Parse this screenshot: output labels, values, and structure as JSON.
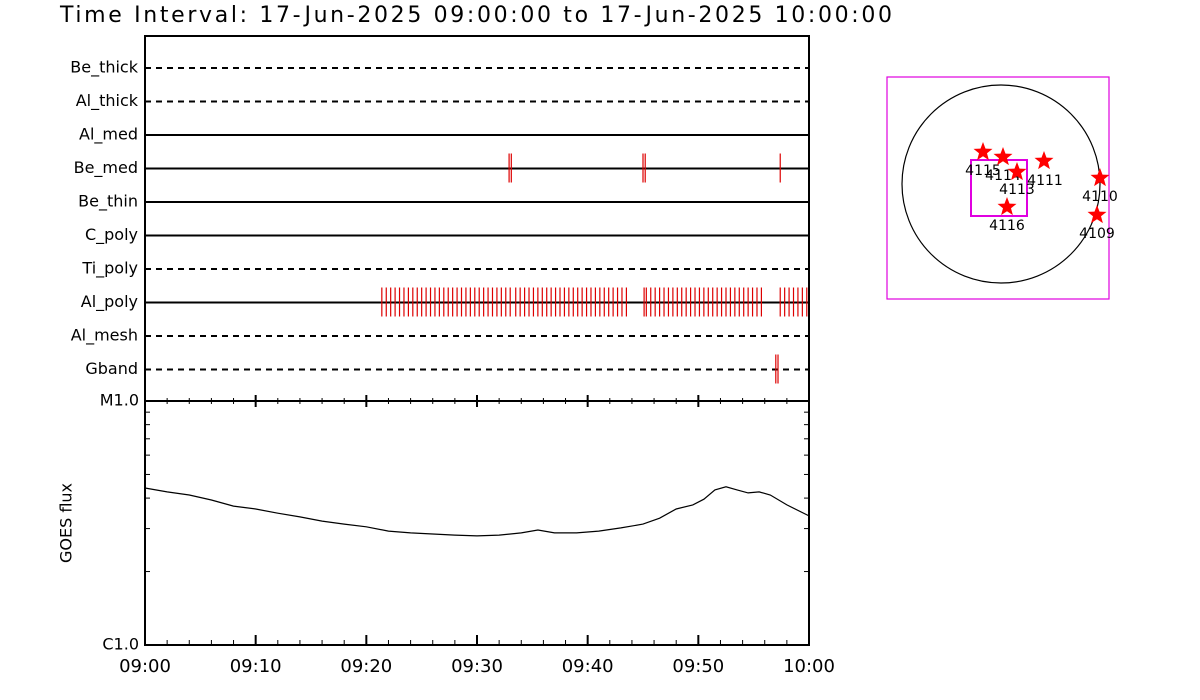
{
  "title": "Time Interval: 17-Jun-2025 09:00:00 to 17-Jun-2025 10:00:00",
  "chart_data": [
    {
      "type": "event",
      "color": "#dd0000",
      "xlim": [
        0,
        60
      ],
      "series": [
        {
          "name": "Be_thick",
          "dashed": true,
          "values": []
        },
        {
          "name": "Al_thick",
          "dashed": true,
          "values": []
        },
        {
          "name": "Al_med",
          "dashed": false,
          "values": []
        },
        {
          "name": "Be_med",
          "dashed": false,
          "values": [
            32.9,
            33.1,
            45.0,
            45.2,
            57.4
          ]
        },
        {
          "name": "Be_thin",
          "dashed": false,
          "values": []
        },
        {
          "name": "C_poly",
          "dashed": false,
          "values": []
        },
        {
          "name": "Ti_poly",
          "dashed": true,
          "values": []
        },
        {
          "name": "Al_poly",
          "dashed": false,
          "values": [
            21.4,
            21.8,
            22.2,
            22.6,
            23.0,
            23.4,
            23.8,
            24.2,
            24.6,
            25.0,
            25.4,
            25.8,
            26.2,
            26.6,
            27.0,
            27.4,
            27.8,
            28.2,
            28.6,
            29.0,
            29.4,
            29.8,
            30.2,
            30.6,
            31.0,
            31.4,
            31.8,
            32.2,
            32.6,
            33.0,
            33.5,
            33.9,
            34.3,
            34.7,
            35.1,
            35.5,
            35.9,
            36.3,
            36.7,
            37.1,
            37.5,
            37.9,
            38.3,
            38.7,
            39.1,
            39.5,
            39.9,
            40.3,
            40.7,
            41.1,
            41.5,
            41.9,
            42.3,
            42.7,
            43.1,
            43.5,
            45.1,
            45.3,
            45.7,
            46.1,
            46.5,
            46.9,
            47.3,
            47.7,
            48.1,
            48.5,
            48.9,
            49.3,
            49.7,
            50.1,
            50.5,
            50.9,
            51.3,
            51.7,
            52.1,
            52.5,
            52.9,
            53.3,
            53.7,
            54.1,
            54.5,
            54.9,
            55.3,
            55.7,
            57.4,
            57.8,
            58.2,
            58.6,
            59.0,
            59.4,
            59.8
          ]
        },
        {
          "name": "Al_mesh",
          "dashed": true,
          "values": []
        },
        {
          "name": "Gband",
          "dashed": true,
          "values": [
            57.0,
            57.2
          ]
        }
      ]
    },
    {
      "type": "line",
      "ylabel": "GOES flux",
      "color": "#000000",
      "log_y": true,
      "x": [
        0,
        2,
        4,
        6,
        8,
        10,
        12,
        14,
        16,
        18,
        20,
        22,
        24,
        26,
        28,
        30,
        32,
        34,
        35.5,
        37,
        39,
        41,
        43,
        45,
        46.5,
        48,
        49.5,
        50.5,
        51.5,
        52.5,
        53.5,
        54.5,
        55.5,
        56.5,
        58,
        60
      ],
      "values": [
        4.4e-06,
        4.24e-06,
        4.12e-06,
        3.93e-06,
        3.71e-06,
        3.61e-06,
        3.47e-06,
        3.35e-06,
        3.22e-06,
        3.13e-06,
        3.05e-06,
        2.93e-06,
        2.88e-06,
        2.85e-06,
        2.82e-06,
        2.8e-06,
        2.82e-06,
        2.88e-06,
        2.96e-06,
        2.88e-06,
        2.88e-06,
        2.93e-06,
        3.02e-06,
        3.13e-06,
        3.31e-06,
        3.61e-06,
        3.75e-06,
        3.96e-06,
        4.32e-06,
        4.45e-06,
        4.32e-06,
        4.2e-06,
        4.24e-06,
        4.12e-06,
        3.75e-06,
        3.38e-06
      ],
      "xlim": [
        0,
        60
      ],
      "xticks": [
        {
          "value": 0,
          "label": "09:00"
        },
        {
          "value": 10,
          "label": "09:10"
        },
        {
          "value": 20,
          "label": "09:20"
        },
        {
          "value": 30,
          "label": "09:30"
        },
        {
          "value": 40,
          "label": "09:40"
        },
        {
          "value": 50,
          "label": "09:50"
        },
        {
          "value": 60,
          "label": "10:00"
        }
      ],
      "xminor": [
        2,
        4,
        6,
        8,
        12,
        14,
        16,
        18,
        22,
        24,
        26,
        28,
        32,
        34,
        36,
        38,
        42,
        44,
        46,
        48,
        52,
        54,
        56,
        58
      ],
      "ylim": [
        1e-06,
        1e-05
      ],
      "yticks": [
        {
          "value": 1e-06,
          "label": "C1.0"
        },
        {
          "value": 1e-05,
          "label": "M1.0"
        }
      ],
      "yminor": [
        2e-06,
        3e-06,
        4e-06,
        5e-06,
        6e-06,
        7e-06,
        8e-06,
        9e-06
      ]
    },
    {
      "type": "map",
      "color": "#ff0000",
      "frame_color": "#e000e0",
      "regions": [
        "4115",
        "4114",
        "4113",
        "4111",
        "4110",
        "4116",
        "4109"
      ]
    }
  ]
}
